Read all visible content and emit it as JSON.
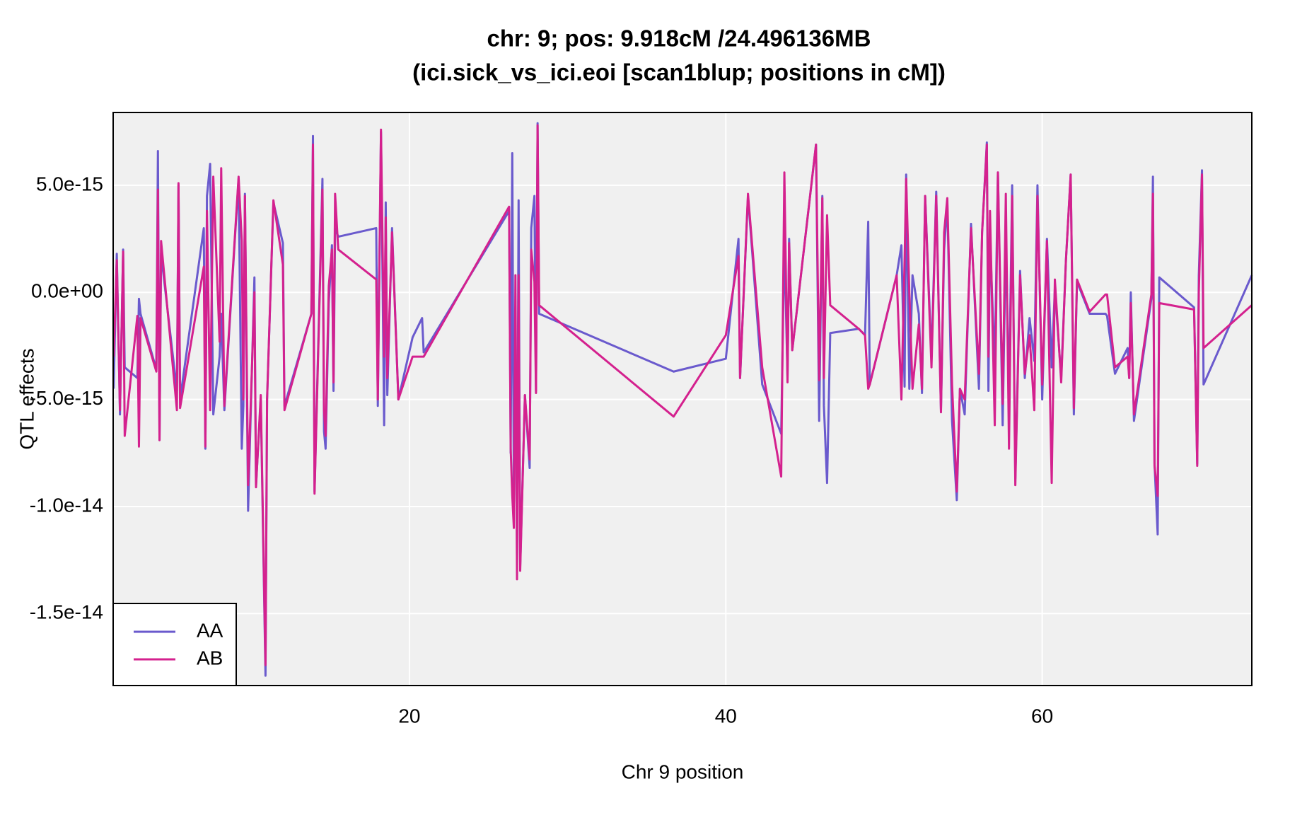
{
  "chart_data": {
    "type": "line",
    "title_lines": [
      "chr: 9; pos: 9.918cM /24.496136MB",
      "(ici.sick_vs_ici.eoi [scan1blup; positions in cM])"
    ],
    "xlabel": "Chr 9 position",
    "ylabel": "QTL effects",
    "x": [
      1.3,
      1.5,
      1.7,
      1.9,
      2.0,
      2.8,
      2.9,
      3.0,
      4.0,
      4.1,
      4.2,
      4.3,
      5.3,
      5.4,
      5.5,
      7.0,
      7.1,
      7.2,
      7.4,
      7.6,
      8.0,
      8.1,
      8.3,
      9.2,
      9.4,
      9.5,
      9.6,
      9.8,
      10.2,
      10.3,
      10.6,
      10.9,
      11.0,
      11.4,
      12.0,
      12.1,
      13.8,
      13.9,
      14.0,
      14.5,
      14.6,
      14.7,
      14.9,
      15.1,
      15.2,
      15.3,
      15.5,
      17.9,
      18.0,
      18.2,
      18.4,
      18.5,
      18.6,
      18.9,
      19.3,
      20.2,
      20.8,
      20.9,
      26.3,
      26.4,
      26.5,
      26.6,
      26.7,
      26.8,
      26.9,
      27.0,
      27.3,
      27.6,
      27.7,
      27.9,
      28.0,
      28.1,
      28.2,
      36.7,
      40.0,
      40.8,
      40.9,
      41.4,
      42.3,
      43.5,
      43.7,
      43.9,
      44.0,
      44.2,
      45.7,
      45.9,
      46.1,
      46.2,
      46.4,
      46.6,
      48.4,
      48.8,
      49.0,
      49.1,
      50.8,
      51.1,
      51.3,
      51.4,
      51.6,
      51.8,
      52.2,
      52.4,
      52.6,
      53.0,
      53.3,
      53.6,
      53.8,
      54.0,
      54.3,
      54.6,
      54.8,
      55.1,
      55.5,
      56.0,
      56.2,
      56.5,
      56.6,
      56.7,
      57.0,
      57.2,
      57.5,
      57.7,
      57.9,
      58.1,
      58.3,
      58.6,
      58.9,
      59.2,
      59.5,
      59.7,
      60.0,
      60.3,
      60.6,
      60.8,
      61.2,
      61.5,
      61.8,
      62.0,
      62.2,
      63.0,
      64.0,
      64.1,
      64.6,
      65.4,
      65.5,
      65.6,
      65.8,
      66.9,
      67.0,
      67.1,
      67.3,
      67.4,
      69.6,
      69.8,
      69.9,
      70.1,
      70.2,
      73.25
    ],
    "series": [
      {
        "name": "AA",
        "color": "#6a5acd",
        "values": [
          -4.5e-15,
          1.8e-15,
          -5.7e-15,
          2e-15,
          -3.5e-15,
          -4e-15,
          -3e-16,
          -1e-15,
          -3.6e-15,
          6.6e-15,
          -6.9e-15,
          1.8e-15,
          -4.6e-15,
          5e-15,
          -5e-15,
          3e-15,
          -7.3e-15,
          4.5e-15,
          6e-15,
          -5.7e-15,
          -3e-15,
          -1e-15,
          -5.5e-15,
          5.3e-15,
          -7.3e-15,
          -5.3e-15,
          4.6e-15,
          -1.02e-14,
          7e-16,
          -9e-15,
          -5e-15,
          -1.79e-14,
          -5e-15,
          4.2e-15,
          2.3e-15,
          -5.3e-15,
          -1e-15,
          7.3e-15,
          -9.3e-15,
          5.3e-15,
          -6.5e-15,
          -7.3e-15,
          -5e-16,
          2.2e-15,
          -4.6e-15,
          3e-15,
          2.6e-15,
          3e-15,
          -5.3e-15,
          7.5e-15,
          -6.2e-15,
          4.2e-15,
          -4.8e-15,
          3e-15,
          -5e-15,
          -2.1e-15,
          -1.2e-15,
          -2.8e-15,
          3.8e-15,
          -7.5e-15,
          6.5e-15,
          -9.8e-15,
          -1.5e-15,
          -1.25e-14,
          4.3e-15,
          -1.28e-14,
          -4.8e-15,
          -8.2e-15,
          3e-15,
          4.5e-15,
          -4.6e-15,
          7.9e-15,
          -1e-15,
          -3.7e-15,
          -3.1e-15,
          2.5e-15,
          -4e-15,
          4.5e-15,
          -4.3e-15,
          -6.6e-15,
          2.5e-15,
          -4e-15,
          2.5e-15,
          -2.7e-15,
          6.9e-15,
          -6e-15,
          4.5e-15,
          -5.3e-15,
          -8.9e-15,
          -1.9e-15,
          -1.7e-15,
          -2e-15,
          3.3e-15,
          -4.3e-15,
          8e-16,
          2.2e-15,
          -4.4e-15,
          5.5e-15,
          -4.5e-15,
          8e-16,
          -1e-15,
          -4.7e-15,
          4.5e-15,
          -3e-15,
          4.7e-15,
          -5.5e-15,
          2e-15,
          4.2e-15,
          -6e-15,
          -9.7e-15,
          -4.5e-15,
          -5.7e-15,
          3.2e-15,
          -4.5e-15,
          2.8e-15,
          7e-15,
          -4.6e-15,
          2.6e-15,
          -3.5e-15,
          5.6e-15,
          -6.2e-15,
          2.6e-15,
          -5e-15,
          5e-15,
          -8.7e-15,
          1e-15,
          -4e-15,
          -1.2e-15,
          -3.2e-15,
          5e-15,
          -5e-15,
          2.5e-15,
          -3.5e-15,
          2e-16,
          -4e-15,
          1.5e-15,
          5.5e-15,
          -5.7e-15,
          5e-16,
          -1e-15,
          -1e-15,
          -1.1e-15,
          -3.8e-15,
          -2.6e-15,
          -4e-15,
          0,
          -6e-15,
          -3e-16,
          5.4e-15,
          -8e-15,
          -1.13e-14,
          7e-16,
          -7e-16,
          -8e-15,
          8e-16,
          5.7e-15,
          -4.3e-15,
          8e-16
        ]
      },
      {
        "name": "AB",
        "color": "#d4218e",
        "values": [
          -3e-15,
          1.5e-15,
          -5.5e-15,
          1.9e-15,
          -6.7e-15,
          -1.1e-15,
          -7.2e-15,
          -1.2e-15,
          -3.7e-15,
          4.8e-15,
          -6.9e-15,
          2.4e-15,
          -5.5e-15,
          5.1e-15,
          -5.4e-15,
          1.2e-15,
          -7.2e-15,
          3.8e-15,
          -5.5e-15,
          5.4e-15,
          -2.3e-15,
          5.8e-15,
          -5.3e-15,
          5.4e-15,
          2.4e-15,
          -5e-15,
          4.5e-15,
          -9e-15,
          0,
          -9.1e-15,
          -4.8e-15,
          -1.74e-14,
          -5e-15,
          4.3e-15,
          1.3e-15,
          -5.5e-15,
          -1e-15,
          6.9e-15,
          -9.4e-15,
          4.8e-15,
          -5.5e-15,
          -6.7e-15,
          3e-16,
          2e-15,
          -4.2e-15,
          4.6e-15,
          2e-15,
          6e-16,
          -5e-15,
          7.6e-15,
          -3e-15,
          3.5e-15,
          -4e-15,
          2.8e-15,
          -5e-15,
          -3e-15,
          -3e-15,
          -3e-15,
          4e-15,
          -7.3e-15,
          -9.5e-15,
          -1.1e-14,
          8e-16,
          -1.34e-14,
          8e-16,
          -1.3e-14,
          -4.8e-15,
          -7.8e-15,
          2e-15,
          5e-16,
          -4.7e-15,
          7.8e-15,
          -6e-16,
          -5.8e-15,
          -2e-15,
          1.7e-15,
          -4e-15,
          4.6e-15,
          -3.5e-15,
          -8.6e-15,
          5.6e-15,
          -4.2e-15,
          2.3e-15,
          -2.7e-15,
          6.9e-15,
          -4.1e-15,
          4.4e-15,
          -4e-15,
          3.6e-15,
          -6e-16,
          -1.7e-15,
          -2e-15,
          -4.5e-15,
          -4.3e-15,
          8e-16,
          -5e-15,
          1.5e-15,
          5.3e-15,
          0,
          -4.5e-15,
          -1.5e-15,
          -4.5e-15,
          4.5e-15,
          -3.5e-15,
          4.5e-15,
          -5.6e-15,
          2.8e-15,
          4.4e-15,
          -4.3e-15,
          -9.3e-15,
          -4.5e-15,
          -5e-15,
          3e-15,
          -3.8e-15,
          2.8e-15,
          6.9e-15,
          -3e-15,
          3.8e-15,
          -6.2e-15,
          5.6e-15,
          -5.2e-15,
          4.6e-15,
          -7.3e-15,
          4.5e-15,
          -9e-15,
          8e-16,
          -3.8e-15,
          -2e-15,
          -5.5e-15,
          4.5e-15,
          -4.3e-15,
          2.4e-15,
          -8.9e-15,
          6e-16,
          -4.2e-15,
          1.5e-15,
          5.5e-15,
          -5.4e-15,
          6e-16,
          -9e-16,
          -1e-16,
          -1e-16,
          -3.5e-15,
          -3e-15,
          -4e-15,
          -5e-16,
          -5.7e-15,
          -1e-16,
          4.6e-15,
          -8.1e-15,
          -9.5e-15,
          -5e-16,
          -8e-16,
          -8.1e-15,
          0,
          5.5e-15,
          -2.6e-15,
          -6e-16
        ]
      }
    ],
    "xlim": [
      1.27,
      73.25
    ],
    "ylim": [
      -1.836e-14,
      8.4e-15
    ],
    "xticks": [
      20,
      40,
      60
    ],
    "yticks": [
      {
        "value": 5e-15,
        "label": "5.0e-15"
      },
      {
        "value": 0,
        "label": "0.0e+00"
      },
      {
        "value": -5e-15,
        "label": "-5.0e-15"
      },
      {
        "value": -1e-14,
        "label": "-1.0e-14"
      },
      {
        "value": -1.5e-14,
        "label": "-1.5e-14"
      }
    ],
    "grid": true,
    "legend": "bottomleft"
  }
}
